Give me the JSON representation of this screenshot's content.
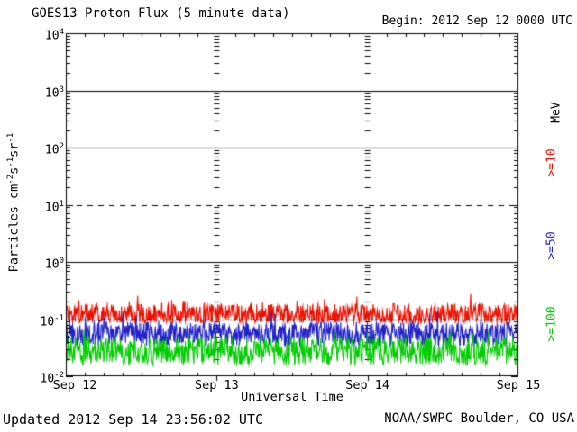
{
  "header": {
    "title": "GOES13 Proton Flux (5 minute data)",
    "begin_label": "Begin: 2012 Sep 12 0000 UTC"
  },
  "footer": {
    "updated": "Updated 2012 Sep 14 23:56:02 UTC",
    "source": "NOAA/SWPC Boulder, CO USA"
  },
  "chart_data": {
    "type": "line",
    "title": "GOES13 Proton Flux (5 minute data)",
    "xlabel": "Universal Time",
    "ylabel_parts": [
      {
        "t": "Particles  cm"
      },
      {
        "sup": "-2"
      },
      {
        "t": "s"
      },
      {
        "sup": "-1"
      },
      {
        "t": "sr"
      },
      {
        "sup": "-1"
      }
    ],
    "units_label": "MeV",
    "x_ticks": [
      "Sep 12",
      "Sep 13",
      "Sep 14",
      "Sep 15"
    ],
    "x_range_days": 3,
    "minor_x_tick_hours": 3,
    "y_scale": "log10",
    "y_log_range": [
      -2,
      4
    ],
    "y_tick_exponents": [
      4,
      3,
      2,
      1,
      0,
      -1,
      -2
    ],
    "grid": {
      "solid_gridline_decades": [
        3,
        2,
        0,
        -1
      ],
      "dashed_gridline_decades": [
        1
      ],
      "vertical_day_gridlines": "log-minor-tick dash columns at Sep 13 and Sep 14",
      "legend_position": "right-rotated"
    },
    "series": [
      {
        "name": "Proton flux >=10 MeV",
        "legend_label": ">=10",
        "color": "#ee1100",
        "approx_median_flux": 0.12,
        "approx_flux_range": [
          0.08,
          0.32
        ],
        "base_log10": -1.07,
        "range_log10": 0.34,
        "shape": 1.25,
        "spike_prob": 0.05,
        "spike_amp": 0.28
      },
      {
        "name": "Proton flux >=50 MeV",
        "legend_label": ">=50",
        "color": "#2222cc",
        "approx_median_flux": 0.055,
        "approx_flux_range": [
          0.033,
          0.14
        ],
        "base_log10": -1.47,
        "range_log10": 0.42,
        "shape": 1.0,
        "spike_prob": 0.04,
        "spike_amp": 0.26
      },
      {
        "name": "Proton flux >=100 MeV",
        "legend_label": ">=100",
        "color": "#00cc00",
        "approx_median_flux": 0.03,
        "approx_flux_range": [
          0.016,
          0.07
        ],
        "base_log10": -1.8,
        "range_log10": 0.48,
        "shape": 1.0,
        "spike_prob": 0.03,
        "spike_amp": 0.2
      }
    ],
    "noise_seed": 20120912,
    "points_per_day": 288
  }
}
